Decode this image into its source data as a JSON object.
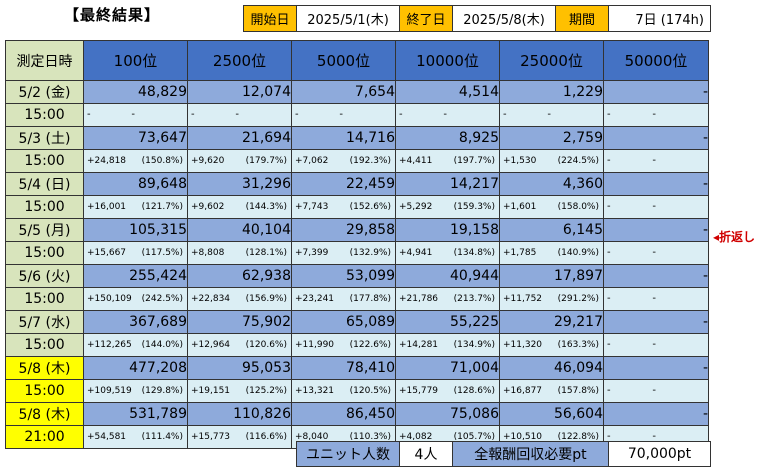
{
  "title": "【最終結果】",
  "header": {
    "start_label": "開始日",
    "start_value": "2025/5/1(木)",
    "end_label": "終了日",
    "end_value": "2025/5/8(木)",
    "period_label": "期間",
    "period_value": "7日 (174h)"
  },
  "table": {
    "corner": "測定日時",
    "columns": [
      "100位",
      "2500位",
      "5000位",
      "10000位",
      "25000位",
      "50000位"
    ],
    "rows": [
      {
        "date": "5/2 (金)",
        "time": "15:00",
        "highlight": false,
        "values": [
          "48,829",
          "12,074",
          "7,654",
          "4,514",
          "1,229",
          "-"
        ],
        "inc": [
          "-",
          "-",
          "-",
          "-",
          "-",
          "-"
        ],
        "pct": [
          "-",
          "-",
          "-",
          "-",
          "-",
          "-"
        ]
      },
      {
        "date": "5/3 (土)",
        "time": "15:00",
        "highlight": false,
        "values": [
          "73,647",
          "21,694",
          "14,716",
          "8,925",
          "2,759",
          "-"
        ],
        "inc": [
          "+24,818",
          "+9,620",
          "+7,062",
          "+4,411",
          "+1,530",
          "-"
        ],
        "pct": [
          "(150.8%)",
          "(179.7%)",
          "(192.3%)",
          "(197.7%)",
          "(224.5%)",
          "-"
        ]
      },
      {
        "date": "5/4 (日)",
        "time": "15:00",
        "highlight": false,
        "values": [
          "89,648",
          "31,296",
          "22,459",
          "14,217",
          "4,360",
          "-"
        ],
        "inc": [
          "+16,001",
          "+9,602",
          "+7,743",
          "+5,292",
          "+1,601",
          "-"
        ],
        "pct": [
          "(121.7%)",
          "(144.3%)",
          "(152.6%)",
          "(159.3%)",
          "(158.0%)",
          "-"
        ]
      },
      {
        "date": "5/5 (月)",
        "time": "15:00",
        "highlight": false,
        "values": [
          "105,315",
          "40,104",
          "29,858",
          "19,158",
          "6,145",
          "-"
        ],
        "inc": [
          "+15,667",
          "+8,808",
          "+7,399",
          "+4,941",
          "+1,785",
          "-"
        ],
        "pct": [
          "(117.5%)",
          "(128.1%)",
          "(132.9%)",
          "(134.8%)",
          "(140.9%)",
          "-"
        ]
      },
      {
        "date": "5/6 (火)",
        "time": "15:00",
        "highlight": false,
        "values": [
          "255,424",
          "62,938",
          "53,099",
          "40,944",
          "17,897",
          "-"
        ],
        "inc": [
          "+150,109",
          "+22,834",
          "+23,241",
          "+21,786",
          "+11,752",
          "-"
        ],
        "pct": [
          "(242.5%)",
          "(156.9%)",
          "(177.8%)",
          "(213.7%)",
          "(291.2%)",
          "-"
        ]
      },
      {
        "date": "5/7 (水)",
        "time": "15:00",
        "highlight": false,
        "values": [
          "367,689",
          "75,902",
          "65,089",
          "55,225",
          "29,217",
          "-"
        ],
        "inc": [
          "+112,265",
          "+12,964",
          "+11,990",
          "+14,281",
          "+11,320",
          "-"
        ],
        "pct": [
          "(144.0%)",
          "(120.6%)",
          "(122.6%)",
          "(134.9%)",
          "(163.3%)",
          "-"
        ]
      },
      {
        "date": "5/8 (木)",
        "time": "15:00",
        "highlight": true,
        "values": [
          "477,208",
          "95,053",
          "78,410",
          "71,004",
          "46,094",
          "-"
        ],
        "inc": [
          "+109,519",
          "+19,151",
          "+13,321",
          "+15,779",
          "+16,877",
          "-"
        ],
        "pct": [
          "(129.8%)",
          "(125.2%)",
          "(120.5%)",
          "(128.6%)",
          "(157.8%)",
          "-"
        ]
      },
      {
        "date": "5/8 (木)",
        "time": "21:00",
        "highlight": true,
        "values": [
          "531,789",
          "110,826",
          "86,450",
          "75,086",
          "56,604",
          "-"
        ],
        "inc": [
          "+54,581",
          "+15,773",
          "+8,040",
          "+4,082",
          "+10,510",
          "-"
        ],
        "pct": [
          "(111.4%)",
          "(116.6%)",
          "(110.3%)",
          "(105.7%)",
          "(122.8%)",
          "-"
        ]
      }
    ]
  },
  "turnaround_note": "◂折返し",
  "footer": {
    "units_label": "ユニット人数",
    "units_value": "4人",
    "reward_label": "全報酬回収必要pt",
    "reward_value": "70,000pt"
  },
  "colors": {
    "header_blue": "#4472c4",
    "value_blue": "#8eaadb",
    "sub_light": "#dbeef4",
    "date_green": "#d8e4bc",
    "highlight_yellow": "#ffff00",
    "label_orange": "#ffc000",
    "turnaround_red": "#d00000"
  }
}
